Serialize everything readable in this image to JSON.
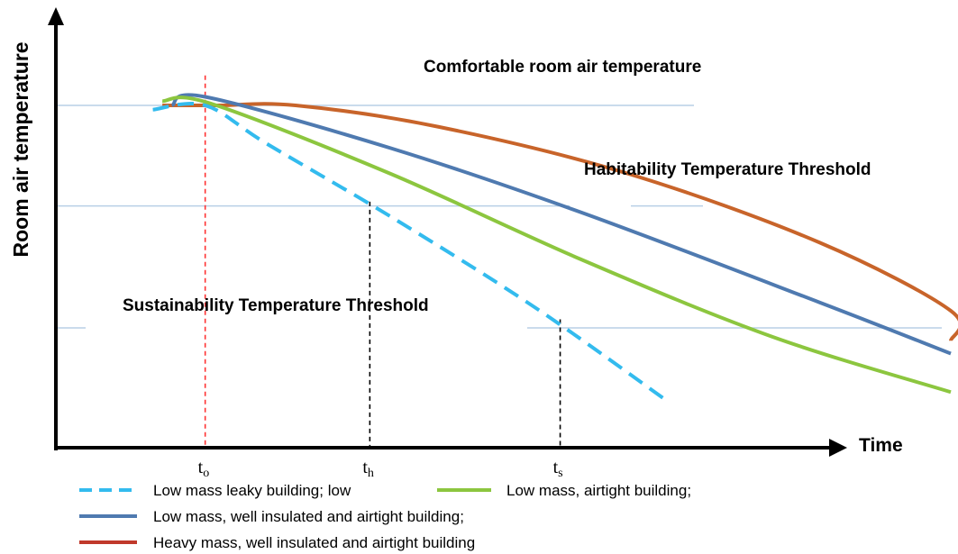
{
  "chart_data": {
    "type": "line",
    "ylabel": "Room air temperature",
    "xlabel": "Time",
    "thresholds": [
      {
        "name": "comfortable",
        "label": "Comfortable room air temperature",
        "level": 0.8,
        "color": "#b8cfe6"
      },
      {
        "name": "habitability",
        "label": "Habitability Temperature Threshold",
        "level": 0.565,
        "color": "#b8cfe6"
      },
      {
        "name": "sustainability",
        "label": "Sustainability Temperature Threshold",
        "level": 0.28,
        "color": "#b8cfe6"
      }
    ],
    "time_markers": [
      {
        "name": "t-o",
        "main": "t",
        "sub": "o",
        "x": 0.155,
        "top": 0.87,
        "color": "#ff3333"
      },
      {
        "name": "t-h",
        "main": "t",
        "sub": "h",
        "x": 0.328,
        "top": 0.575,
        "color": "#000000"
      },
      {
        "name": "t-s",
        "main": "t",
        "sub": "s",
        "x": 0.528,
        "top": 0.3,
        "color": "#000000"
      }
    ],
    "series": [
      {
        "name": "Low mass leaky building; low",
        "color": "#33bbee",
        "dashed": true,
        "points": [
          [
            0.1,
            0.79
          ],
          [
            0.155,
            0.8
          ],
          [
            0.22,
            0.71
          ],
          [
            0.35,
            0.54
          ],
          [
            0.5,
            0.33
          ],
          [
            0.64,
            0.11
          ]
        ]
      },
      {
        "name": "Low mass, airtight building;",
        "color": "#8cc63f",
        "dashed": false,
        "points": [
          [
            0.11,
            0.81
          ],
          [
            0.16,
            0.805
          ],
          [
            0.35,
            0.64
          ],
          [
            0.55,
            0.44
          ],
          [
            0.75,
            0.26
          ],
          [
            0.96,
            0.13
          ]
        ]
      },
      {
        "name": "Low mass, well insulated and airtight building;",
        "color": "#4f7ab0",
        "dashed": false,
        "points": [
          [
            0.12,
            0.8
          ],
          [
            0.155,
            0.82
          ],
          [
            0.35,
            0.7
          ],
          [
            0.55,
            0.55
          ],
          [
            0.8,
            0.34
          ],
          [
            1.05,
            0.22
          ]
        ]
      },
      {
        "name": "Heavy mass, well insulated and airtight building",
        "color": "#c8642a",
        "legend_color": "#c0392b",
        "dashed": false,
        "points": [
          [
            0.11,
            0.8
          ],
          [
            0.17,
            0.8
          ],
          [
            0.25,
            0.8
          ],
          [
            0.4,
            0.75
          ],
          [
            0.6,
            0.64
          ],
          [
            0.8,
            0.48
          ],
          [
            1.0,
            0.32
          ],
          [
            1.1,
            0.25
          ]
        ]
      }
    ]
  }
}
